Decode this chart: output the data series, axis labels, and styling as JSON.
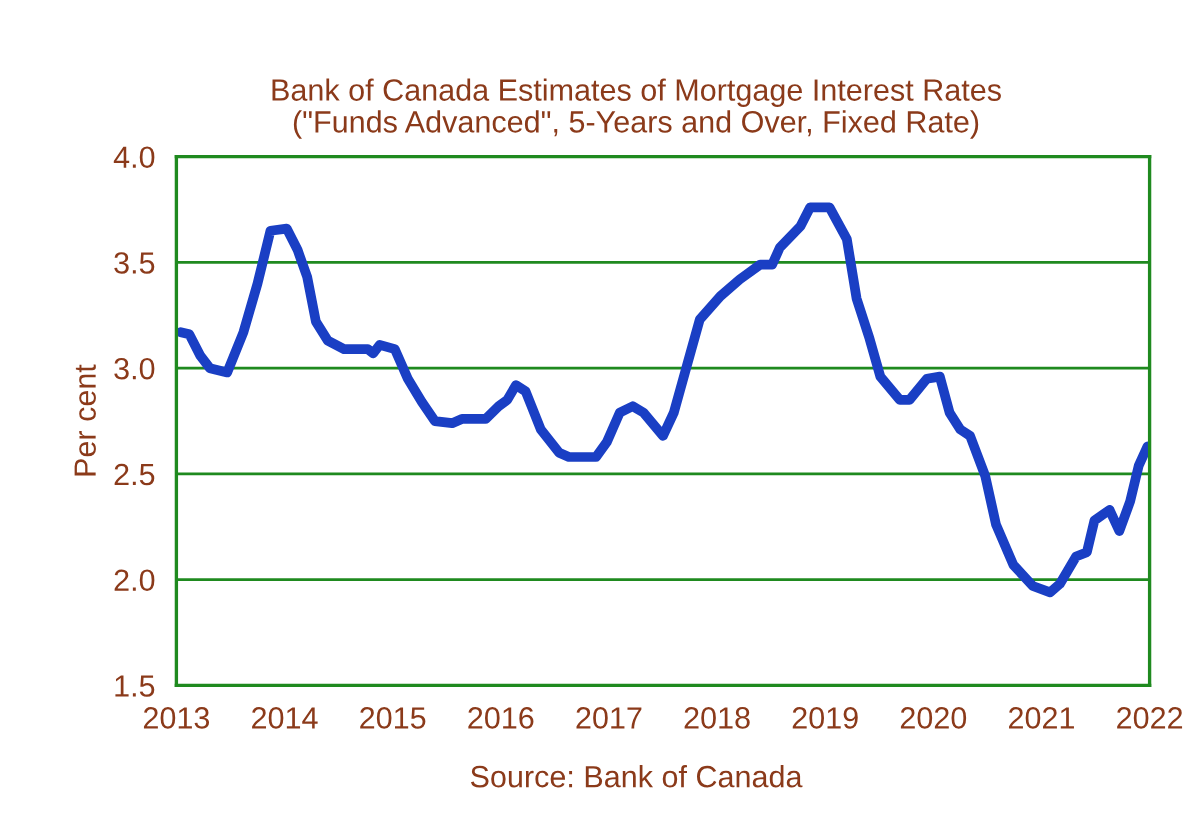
{
  "chart_data": {
    "type": "line",
    "title": "Bank of Canada Estimates of Mortgage Interest Rates\n(\"Funds Advanced\", 5-Years and Over, Fixed Rate)",
    "ylabel": "Per cent",
    "annotations": [
      "Source: Bank of Canada"
    ],
    "series": [
      {
        "color": "#1a3fc4",
        "x": [
          2013.04,
          2013.12,
          2013.22,
          2013.31,
          2013.47,
          2013.62,
          2013.75,
          2013.87,
          2014.02,
          2014.12,
          2014.21,
          2014.29,
          2014.4,
          2014.55,
          2014.77,
          2014.82,
          2014.88,
          2015.02,
          2015.14,
          2015.27,
          2015.39,
          2015.55,
          2015.64,
          2015.86,
          2015.98,
          2016.06,
          2016.14,
          2016.23,
          2016.37,
          2016.54,
          2016.63,
          2016.88,
          2016.98,
          2017.1,
          2017.22,
          2017.32,
          2017.5,
          2017.6,
          2017.72,
          2017.84,
          2018.03,
          2018.21,
          2018.4,
          2018.51,
          2018.58,
          2018.77,
          2018.86,
          2019.04,
          2019.2,
          2019.29,
          2019.41,
          2019.51,
          2019.69,
          2019.78,
          2019.94,
          2020.06,
          2020.15,
          2020.25,
          2020.34,
          2020.48,
          2020.58,
          2020.74,
          2020.92,
          2021.08,
          2021.17,
          2021.32,
          2021.42,
          2021.49,
          2021.63,
          2021.72,
          2021.82,
          2021.9,
          2021.98
        ],
        "values": [
          3.17,
          3.16,
          3.06,
          3.0,
          2.98,
          3.17,
          3.4,
          3.65,
          3.66,
          3.56,
          3.43,
          3.22,
          3.13,
          3.09,
          3.09,
          3.07,
          3.11,
          3.09,
          2.95,
          2.84,
          2.75,
          2.74,
          2.76,
          2.76,
          2.82,
          2.85,
          2.92,
          2.89,
          2.71,
          2.6,
          2.58,
          2.58,
          2.65,
          2.79,
          2.82,
          2.79,
          2.68,
          2.79,
          3.01,
          3.23,
          3.34,
          3.42,
          3.49,
          3.49,
          3.57,
          3.67,
          3.76,
          3.76,
          3.61,
          3.33,
          3.14,
          2.96,
          2.85,
          2.85,
          2.95,
          2.96,
          2.79,
          2.71,
          2.68,
          2.49,
          2.26,
          2.07,
          1.97,
          1.94,
          1.98,
          2.11,
          2.13,
          2.28,
          2.33,
          2.23,
          2.37,
          2.54,
          2.63
        ]
      }
    ],
    "xlim": [
      2013,
      2022
    ],
    "xticks": [
      2013,
      2014,
      2015,
      2016,
      2017,
      2018,
      2019,
      2020,
      2021,
      2022
    ],
    "ylim": [
      1.5,
      4.0
    ],
    "yticks": [
      {
        "value": 1.5,
        "label": "1.5"
      },
      {
        "value": 2.0,
        "label": "2.0"
      },
      {
        "value": 2.5,
        "label": "2.5"
      },
      {
        "value": 3.0,
        "label": "3.0"
      },
      {
        "value": 3.5,
        "label": "3.5"
      },
      {
        "value": 4.0,
        "label": "4.0"
      }
    ],
    "grid": "y",
    "marker": "none",
    "line_style": "solid"
  }
}
